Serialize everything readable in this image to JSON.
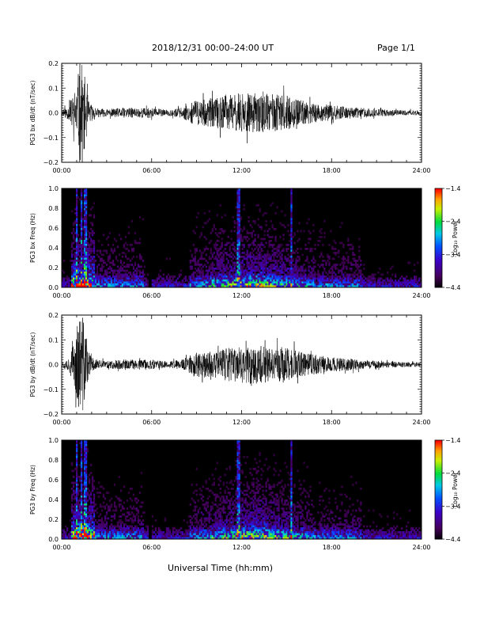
{
  "header": {
    "title": "2018/12/31  00:00–24:00 UT",
    "page": "Page 1/1"
  },
  "xaxis_label": "Universal Time (hh:mm)",
  "chart_data": [
    {
      "type": "line",
      "name": "bx-waveform",
      "ylabel": "PG3 bx dB/dt (nT/sec)",
      "x_ticks": [
        "00:00",
        "06:00",
        "12:00",
        "18:00",
        "24:00"
      ],
      "xlim": [
        0,
        24
      ],
      "ylim": [
        -0.2,
        0.2
      ],
      "y_ticks": [
        "0.2",
        "0.1",
        "0.0",
        "−0.1",
        "−0.2"
      ],
      "y_tick_values": [
        0.2,
        0.1,
        0.0,
        -0.1,
        -0.2
      ],
      "envelope": {
        "x": [
          0,
          0.5,
          1.0,
          1.2,
          1.4,
          1.6,
          1.8,
          2.2,
          3,
          4,
          5,
          6,
          7,
          8,
          8.5,
          9,
          10,
          11,
          12,
          13,
          14,
          15,
          16,
          17,
          18,
          19,
          20,
          21,
          22,
          23,
          24
        ],
        "amplitude": [
          0.012,
          0.03,
          0.12,
          0.2,
          0.2,
          0.12,
          0.05,
          0.02,
          0.015,
          0.02,
          0.02,
          0.02,
          0.012,
          0.02,
          0.04,
          0.05,
          0.06,
          0.07,
          0.08,
          0.08,
          0.075,
          0.07,
          0.05,
          0.04,
          0.03,
          0.025,
          0.02,
          0.015,
          0.012,
          0.01,
          0.01
        ]
      }
    },
    {
      "type": "heatmap",
      "name": "bx-spectrogram",
      "ylabel": "PG3 bx Freq (Hz)",
      "x_ticks": [
        "00:00",
        "06:00",
        "12:00",
        "18:00",
        "24:00"
      ],
      "xlim": [
        0,
        24
      ],
      "ylim": [
        0,
        1.0
      ],
      "y_ticks": [
        "1.0",
        "0.8",
        "0.6",
        "0.4",
        "0.2",
        "0.0"
      ],
      "y_tick_values": [
        1.0,
        0.8,
        0.6,
        0.4,
        0.2,
        0.0
      ],
      "colorbar": {
        "label": "Log₁₀ Power",
        "ticks": [
          "−1.4",
          "−2.4",
          "−3.4",
          "−4.4"
        ],
        "tick_values": [
          -1.4,
          -2.4,
          -3.4,
          -4.4
        ],
        "range": [
          -4.4,
          -1.4
        ]
      },
      "features": {
        "bright_lines_hours": [
          1.0,
          1.3,
          1.6,
          11.8,
          15.3
        ],
        "gap_hours": [
          5.8,
          5.95
        ],
        "activity_band_hours": [
          8.5,
          17.0
        ]
      }
    },
    {
      "type": "line",
      "name": "by-waveform",
      "ylabel": "PG3 by dB/dt (nT/sec)",
      "x_ticks": [
        "00:00",
        "06:00",
        "12:00",
        "18:00",
        "24:00"
      ],
      "xlim": [
        0,
        24
      ],
      "ylim": [
        -0.2,
        0.2
      ],
      "y_ticks": [
        "0.2",
        "0.1",
        "0.0",
        "−0.1",
        "−0.2"
      ],
      "y_tick_values": [
        0.2,
        0.1,
        0.0,
        -0.1,
        -0.2
      ],
      "envelope": {
        "x": [
          0,
          0.5,
          1.0,
          1.2,
          1.4,
          1.6,
          1.8,
          2.2,
          3,
          4,
          5,
          6,
          7,
          8,
          8.5,
          9,
          10,
          11,
          12,
          13,
          14,
          15,
          16,
          17,
          18,
          19,
          20,
          21,
          22,
          23,
          24
        ],
        "amplitude": [
          0.012,
          0.03,
          0.13,
          0.2,
          0.2,
          0.14,
          0.05,
          0.02,
          0.015,
          0.02,
          0.02,
          0.02,
          0.012,
          0.02,
          0.035,
          0.05,
          0.055,
          0.065,
          0.075,
          0.08,
          0.075,
          0.07,
          0.05,
          0.04,
          0.03,
          0.025,
          0.02,
          0.015,
          0.012,
          0.01,
          0.01
        ]
      }
    },
    {
      "type": "heatmap",
      "name": "by-spectrogram",
      "ylabel": "PG3 by Freq (Hz)",
      "x_ticks": [
        "00:00",
        "06:00",
        "12:00",
        "18:00",
        "24:00"
      ],
      "xlim": [
        0,
        24
      ],
      "ylim": [
        0,
        1.0
      ],
      "y_ticks": [
        "1.0",
        "0.8",
        "0.6",
        "0.4",
        "0.2",
        "0.0"
      ],
      "y_tick_values": [
        1.0,
        0.8,
        0.6,
        0.4,
        0.2,
        0.0
      ],
      "colorbar": {
        "label": "Log₁₀ Power",
        "ticks": [
          "−1.4",
          "−2.4",
          "−3.4",
          "−4.4"
        ],
        "tick_values": [
          -1.4,
          -2.4,
          -3.4,
          -4.4
        ],
        "range": [
          -4.4,
          -1.4
        ]
      },
      "features": {
        "bright_lines_hours": [
          1.0,
          1.3,
          1.6,
          11.8,
          15.3
        ],
        "gap_hours": [
          5.8,
          5.95
        ],
        "activity_band_hours": [
          8.5,
          17.0
        ]
      }
    }
  ]
}
